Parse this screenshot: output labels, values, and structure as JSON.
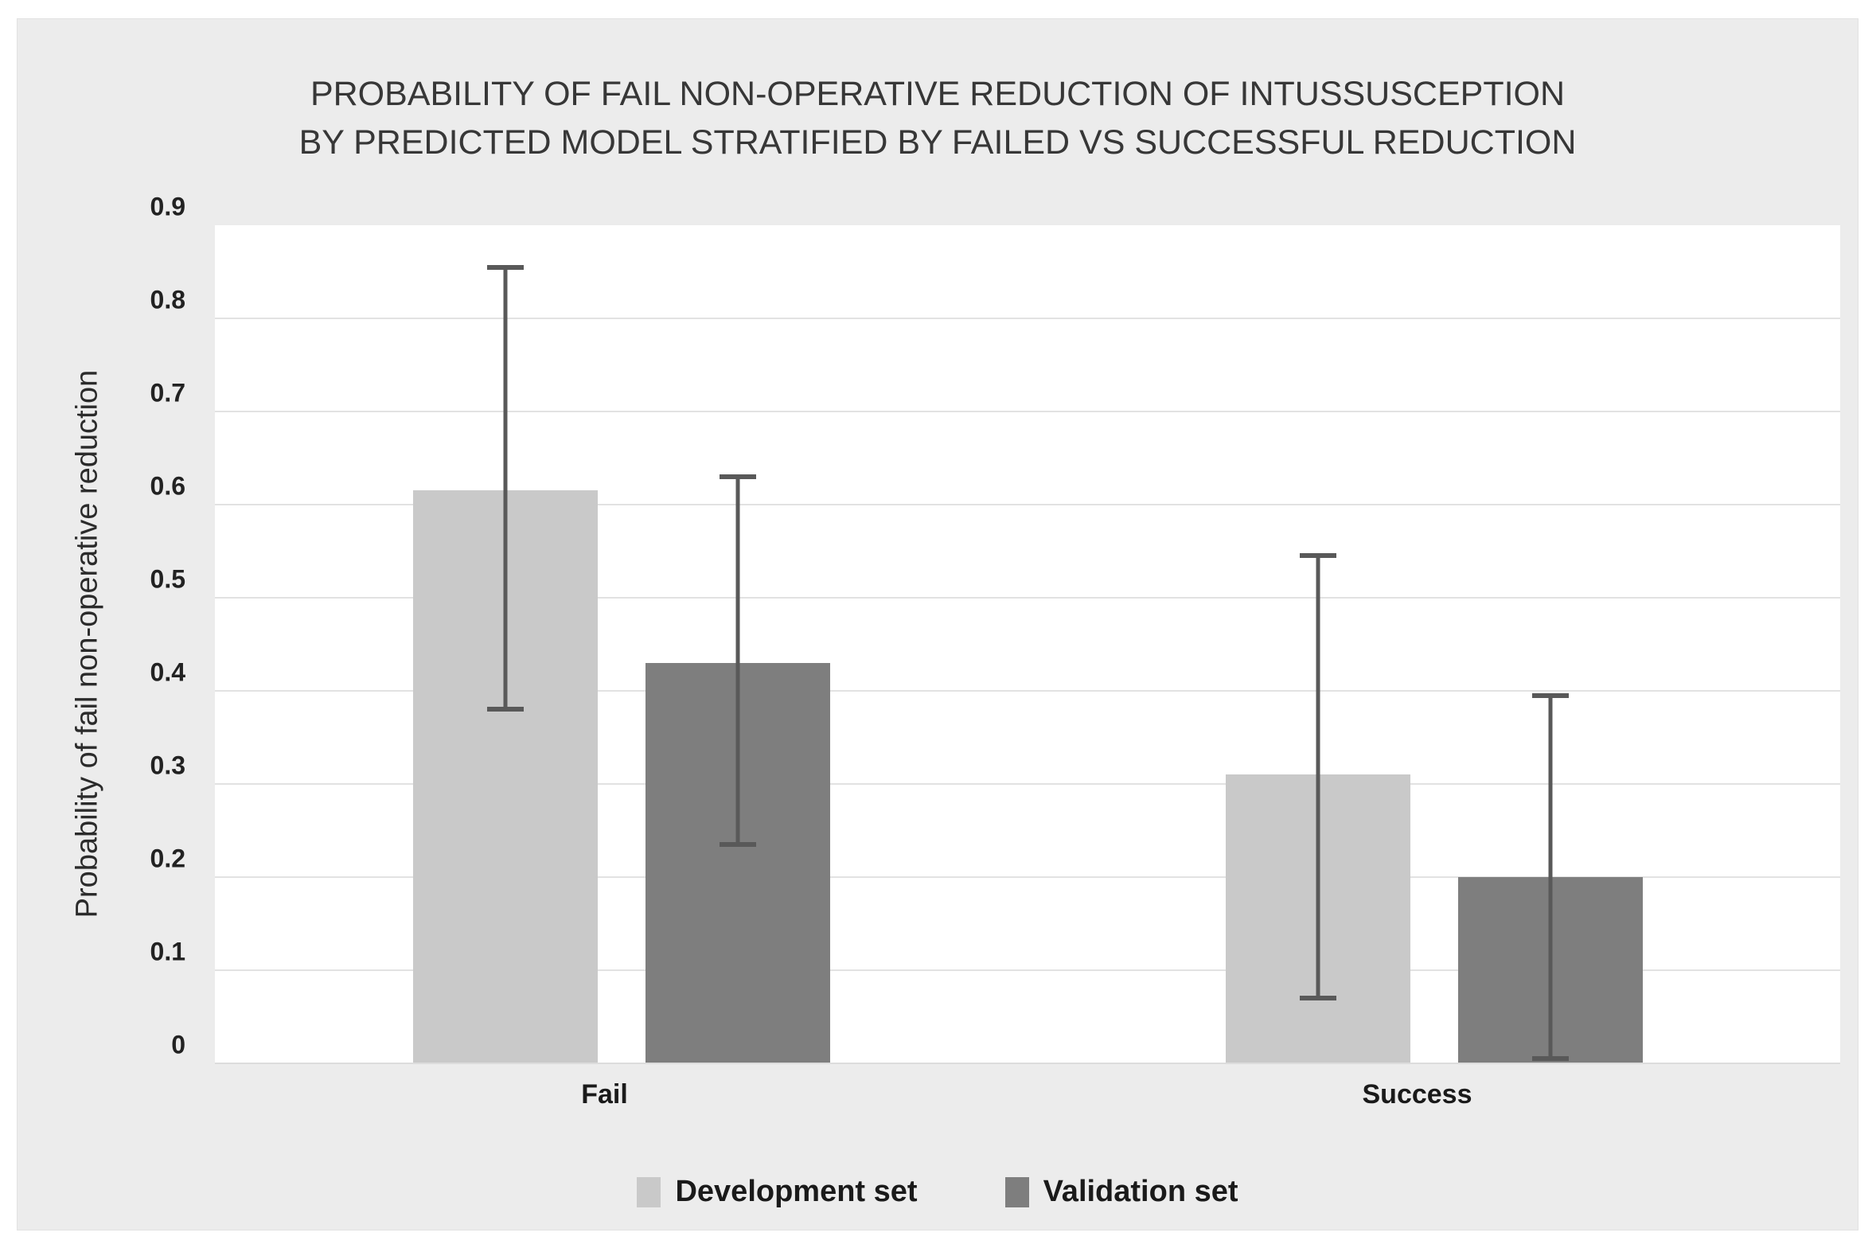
{
  "title_lines": [
    "PROBABILITY OF FAIL NON-OPERATIVE REDUCTION OF INTUSSUSCEPTION",
    "BY PREDICTED MODEL STRATIFIED BY FAILED VS SUCCESSFUL REDUCTION"
  ],
  "colors": {
    "panel_background": "#ececec",
    "plot_background": "#ffffff",
    "gridline": "#e2e2e2",
    "development_bar": "#c9c9c9",
    "validation_bar": "#7e7e7e",
    "error_bar": "#595959"
  },
  "chart_data": {
    "type": "bar",
    "title": "PROBABILITY OF FAIL NON-OPERATIVE REDUCTION OF INTUSSUSCEPTION BY PREDICTED MODEL STRATIFIED BY FAILED VS SUCCESSFUL REDUCTION",
    "ylabel": "Probability of fail non-operative reduction",
    "xlabel": "",
    "categories": [
      "Fail",
      "Success"
    ],
    "series": [
      {
        "name": "Development set",
        "color": "#c9c9c9",
        "values": [
          0.615,
          0.31
        ],
        "error_low": [
          0.38,
          0.07
        ],
        "error_high": [
          0.855,
          0.545
        ]
      },
      {
        "name": "Validation set",
        "color": "#7e7e7e",
        "values": [
          0.43,
          0.2
        ],
        "error_low": [
          0.235,
          0.005
        ],
        "error_high": [
          0.63,
          0.395
        ]
      }
    ],
    "ylim": [
      0,
      0.9
    ],
    "yticks": [
      0,
      0.1,
      0.2,
      0.3,
      0.4,
      0.5,
      0.6,
      0.7,
      0.8,
      0.9
    ],
    "ytick_labels": [
      "0",
      "0.1",
      "0.2",
      "0.3",
      "0.4",
      "0.5",
      "0.6",
      "0.7",
      "0.8",
      "0.9"
    ],
    "grid": true,
    "legend_position": "bottom",
    "error_bar_color": "#595959"
  }
}
